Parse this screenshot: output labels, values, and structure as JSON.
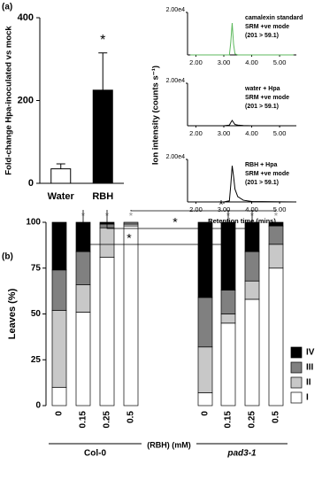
{
  "chart_data": [
    {
      "type": "bar",
      "label": "(a)",
      "ylabel": "Fold-change Hpa-inoculated vs mock",
      "categories": [
        "Water",
        "RBH"
      ],
      "values": [
        35,
        225
      ],
      "errors": [
        12,
        90
      ],
      "colors": [
        "#ffffff",
        "#000000"
      ],
      "annotation": "*",
      "ylim": [
        0,
        400
      ],
      "yticks": [
        0,
        200,
        400
      ]
    },
    {
      "type": "line",
      "ylabel": "Ion intensity (counts s⁻¹)",
      "annotations": [
        "camalexin standard",
        "SRM +ve mode",
        "(201 > 59.1)"
      ],
      "x": [
        1.8,
        3.0,
        3.2,
        3.25,
        3.3,
        3.35,
        3.4,
        3.5,
        3.7,
        4.0,
        5.5
      ],
      "values": [
        0,
        0,
        0,
        6000,
        15000,
        5000,
        500,
        0,
        0,
        0,
        0
      ],
      "color": "#5cb85c",
      "xlim": [
        1.7,
        5.6
      ],
      "xticks": [
        {
          "value": 2,
          "label": "2.00"
        },
        {
          "value": 3,
          "label": "3.00"
        },
        {
          "value": 4,
          "label": "4.00"
        },
        {
          "value": 5,
          "label": "5.00"
        }
      ],
      "ylim": [
        0,
        20000
      ],
      "yticks": [
        {
          "value": 20000,
          "label": "2.00e4"
        }
      ]
    },
    {
      "type": "line",
      "annotations": [
        "water + Hpa",
        "SRM +ve mode",
        "(201 > 59.1)"
      ],
      "x": [
        1.8,
        3.0,
        3.2,
        3.25,
        3.3,
        3.35,
        3.4,
        3.5,
        3.7,
        4.0,
        5.5
      ],
      "values": [
        0,
        0,
        300,
        1500,
        2500,
        1500,
        600,
        300,
        100,
        0,
        0
      ],
      "color": "#000000",
      "xlim": [
        1.7,
        5.6
      ],
      "xticks": [
        {
          "value": 2,
          "label": "2.00"
        },
        {
          "value": 3,
          "label": "3.00"
        },
        {
          "value": 4,
          "label": "4.00"
        },
        {
          "value": 5,
          "label": "5.00"
        }
      ],
      "ylim": [
        0,
        20000
      ],
      "yticks": [
        {
          "value": 20000,
          "label": "2.00e4"
        }
      ]
    },
    {
      "type": "line",
      "xlabel": "Retention time (mins)",
      "annotations": [
        "RBH + Hpa",
        "SRM +ve mode",
        "(201 > 59.1)"
      ],
      "x": [
        1.8,
        3.0,
        3.2,
        3.25,
        3.3,
        3.35,
        3.4,
        3.5,
        3.7,
        4.0,
        5.5
      ],
      "values": [
        0,
        0,
        500,
        8000,
        17000,
        12000,
        6000,
        2500,
        800,
        200,
        0
      ],
      "color": "#000000",
      "xlim": [
        1.7,
        5.6
      ],
      "xticks": [
        {
          "value": 2,
          "label": "2.00"
        },
        {
          "value": 3,
          "label": "3.00"
        },
        {
          "value": 4,
          "label": "4.00"
        },
        {
          "value": 5,
          "label": "5.00"
        }
      ],
      "ylim": [
        0,
        20000
      ],
      "yticks": [
        {
          "value": 20000,
          "label": "2.00e4"
        }
      ]
    },
    {
      "type": "stacked_bar",
      "label": "(b)",
      "ylabel": "Leaves (%)",
      "categories": [
        "0",
        "0.15",
        "0.25",
        "0.5",
        "0",
        "0.15",
        "0.25",
        "0.5"
      ],
      "groups": [
        "Col-0",
        "pad3-1"
      ],
      "unit_label": "(RBH) (mM)",
      "sig_labels": [
        null,
        "*",
        "*",
        "*",
        null,
        "*",
        "*",
        "*"
      ],
      "comparisons": [
        "*",
        "*",
        "*"
      ],
      "series": [
        {
          "name": "I",
          "color": "#ffffff",
          "values": [
            10,
            51,
            81,
            98,
            7,
            45,
            58,
            75
          ]
        },
        {
          "name": "II",
          "color": "#c8c8c8",
          "values": [
            42,
            15,
            16,
            1,
            25,
            5,
            10,
            13
          ]
        },
        {
          "name": "III",
          "color": "#808080",
          "values": [
            22,
            18,
            2,
            1,
            27,
            13,
            16,
            10
          ]
        },
        {
          "name": "IV",
          "color": "#000000",
          "values": [
            26,
            16,
            1,
            0,
            41,
            37,
            16,
            2
          ]
        }
      ],
      "ylim": [
        0,
        100
      ],
      "yticks": [
        0,
        25,
        50,
        75,
        100
      ]
    }
  ]
}
